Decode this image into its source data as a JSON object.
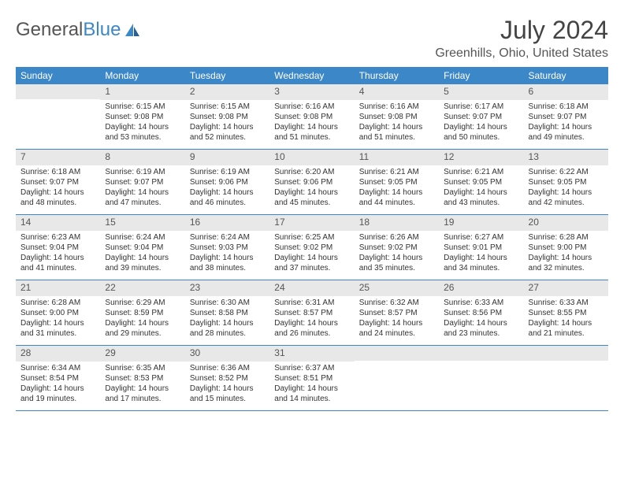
{
  "logo": {
    "text1": "General",
    "text2": "Blue"
  },
  "title": "July 2024",
  "location": "Greenhills, Ohio, United States",
  "colors": {
    "header_bg": "#3c87c7",
    "header_text": "#ffffff",
    "daynum_bg": "#e8e8e8",
    "border": "#3c87c7",
    "text": "#333333"
  },
  "dow": [
    "Sunday",
    "Monday",
    "Tuesday",
    "Wednesday",
    "Thursday",
    "Friday",
    "Saturday"
  ],
  "weeks": [
    [
      {
        "n": "",
        "sr": "",
        "ss": "",
        "dl": ""
      },
      {
        "n": "1",
        "sr": "Sunrise: 6:15 AM",
        "ss": "Sunset: 9:08 PM",
        "dl": "Daylight: 14 hours and 53 minutes."
      },
      {
        "n": "2",
        "sr": "Sunrise: 6:15 AM",
        "ss": "Sunset: 9:08 PM",
        "dl": "Daylight: 14 hours and 52 minutes."
      },
      {
        "n": "3",
        "sr": "Sunrise: 6:16 AM",
        "ss": "Sunset: 9:08 PM",
        "dl": "Daylight: 14 hours and 51 minutes."
      },
      {
        "n": "4",
        "sr": "Sunrise: 6:16 AM",
        "ss": "Sunset: 9:08 PM",
        "dl": "Daylight: 14 hours and 51 minutes."
      },
      {
        "n": "5",
        "sr": "Sunrise: 6:17 AM",
        "ss": "Sunset: 9:07 PM",
        "dl": "Daylight: 14 hours and 50 minutes."
      },
      {
        "n": "6",
        "sr": "Sunrise: 6:18 AM",
        "ss": "Sunset: 9:07 PM",
        "dl": "Daylight: 14 hours and 49 minutes."
      }
    ],
    [
      {
        "n": "7",
        "sr": "Sunrise: 6:18 AM",
        "ss": "Sunset: 9:07 PM",
        "dl": "Daylight: 14 hours and 48 minutes."
      },
      {
        "n": "8",
        "sr": "Sunrise: 6:19 AM",
        "ss": "Sunset: 9:07 PM",
        "dl": "Daylight: 14 hours and 47 minutes."
      },
      {
        "n": "9",
        "sr": "Sunrise: 6:19 AM",
        "ss": "Sunset: 9:06 PM",
        "dl": "Daylight: 14 hours and 46 minutes."
      },
      {
        "n": "10",
        "sr": "Sunrise: 6:20 AM",
        "ss": "Sunset: 9:06 PM",
        "dl": "Daylight: 14 hours and 45 minutes."
      },
      {
        "n": "11",
        "sr": "Sunrise: 6:21 AM",
        "ss": "Sunset: 9:05 PM",
        "dl": "Daylight: 14 hours and 44 minutes."
      },
      {
        "n": "12",
        "sr": "Sunrise: 6:21 AM",
        "ss": "Sunset: 9:05 PM",
        "dl": "Daylight: 14 hours and 43 minutes."
      },
      {
        "n": "13",
        "sr": "Sunrise: 6:22 AM",
        "ss": "Sunset: 9:05 PM",
        "dl": "Daylight: 14 hours and 42 minutes."
      }
    ],
    [
      {
        "n": "14",
        "sr": "Sunrise: 6:23 AM",
        "ss": "Sunset: 9:04 PM",
        "dl": "Daylight: 14 hours and 41 minutes."
      },
      {
        "n": "15",
        "sr": "Sunrise: 6:24 AM",
        "ss": "Sunset: 9:04 PM",
        "dl": "Daylight: 14 hours and 39 minutes."
      },
      {
        "n": "16",
        "sr": "Sunrise: 6:24 AM",
        "ss": "Sunset: 9:03 PM",
        "dl": "Daylight: 14 hours and 38 minutes."
      },
      {
        "n": "17",
        "sr": "Sunrise: 6:25 AM",
        "ss": "Sunset: 9:02 PM",
        "dl": "Daylight: 14 hours and 37 minutes."
      },
      {
        "n": "18",
        "sr": "Sunrise: 6:26 AM",
        "ss": "Sunset: 9:02 PM",
        "dl": "Daylight: 14 hours and 35 minutes."
      },
      {
        "n": "19",
        "sr": "Sunrise: 6:27 AM",
        "ss": "Sunset: 9:01 PM",
        "dl": "Daylight: 14 hours and 34 minutes."
      },
      {
        "n": "20",
        "sr": "Sunrise: 6:28 AM",
        "ss": "Sunset: 9:00 PM",
        "dl": "Daylight: 14 hours and 32 minutes."
      }
    ],
    [
      {
        "n": "21",
        "sr": "Sunrise: 6:28 AM",
        "ss": "Sunset: 9:00 PM",
        "dl": "Daylight: 14 hours and 31 minutes."
      },
      {
        "n": "22",
        "sr": "Sunrise: 6:29 AM",
        "ss": "Sunset: 8:59 PM",
        "dl": "Daylight: 14 hours and 29 minutes."
      },
      {
        "n": "23",
        "sr": "Sunrise: 6:30 AM",
        "ss": "Sunset: 8:58 PM",
        "dl": "Daylight: 14 hours and 28 minutes."
      },
      {
        "n": "24",
        "sr": "Sunrise: 6:31 AM",
        "ss": "Sunset: 8:57 PM",
        "dl": "Daylight: 14 hours and 26 minutes."
      },
      {
        "n": "25",
        "sr": "Sunrise: 6:32 AM",
        "ss": "Sunset: 8:57 PM",
        "dl": "Daylight: 14 hours and 24 minutes."
      },
      {
        "n": "26",
        "sr": "Sunrise: 6:33 AM",
        "ss": "Sunset: 8:56 PM",
        "dl": "Daylight: 14 hours and 23 minutes."
      },
      {
        "n": "27",
        "sr": "Sunrise: 6:33 AM",
        "ss": "Sunset: 8:55 PM",
        "dl": "Daylight: 14 hours and 21 minutes."
      }
    ],
    [
      {
        "n": "28",
        "sr": "Sunrise: 6:34 AM",
        "ss": "Sunset: 8:54 PM",
        "dl": "Daylight: 14 hours and 19 minutes."
      },
      {
        "n": "29",
        "sr": "Sunrise: 6:35 AM",
        "ss": "Sunset: 8:53 PM",
        "dl": "Daylight: 14 hours and 17 minutes."
      },
      {
        "n": "30",
        "sr": "Sunrise: 6:36 AM",
        "ss": "Sunset: 8:52 PM",
        "dl": "Daylight: 14 hours and 15 minutes."
      },
      {
        "n": "31",
        "sr": "Sunrise: 6:37 AM",
        "ss": "Sunset: 8:51 PM",
        "dl": "Daylight: 14 hours and 14 minutes."
      },
      {
        "n": "",
        "sr": "",
        "ss": "",
        "dl": ""
      },
      {
        "n": "",
        "sr": "",
        "ss": "",
        "dl": ""
      },
      {
        "n": "",
        "sr": "",
        "ss": "",
        "dl": ""
      }
    ]
  ]
}
